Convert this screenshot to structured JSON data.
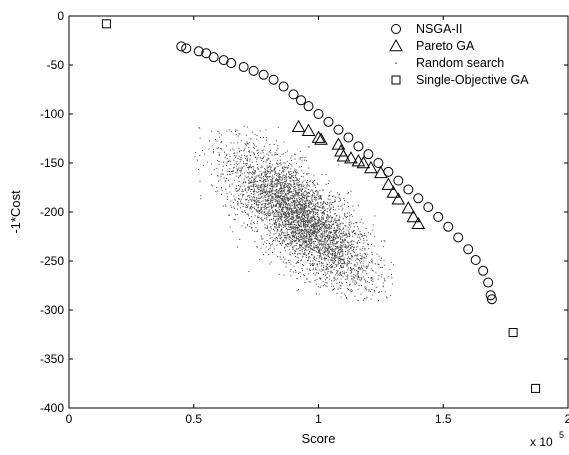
{
  "chart_data": {
    "type": "scatter",
    "xlabel": "Score",
    "ylabel": "-1*Cost",
    "x_multiplier_label": "x 10",
    "x_multiplier_exponent": "5",
    "xlim": [
      0,
      200000
    ],
    "ylim": [
      -400,
      0
    ],
    "x_ticks": [
      0,
      50000,
      100000,
      150000,
      200000
    ],
    "x_tick_labels": [
      "0",
      "0.5",
      "1",
      "1.5",
      "2"
    ],
    "y_ticks": [
      0,
      -50,
      -100,
      -150,
      -200,
      -250,
      -300,
      -350,
      -400
    ],
    "y_tick_labels": [
      "0",
      "-50",
      "-100",
      "-150",
      "-200",
      "-250",
      "-300",
      "-350",
      "-400"
    ],
    "grid": false,
    "legend_position": "top-right",
    "colors": {
      "ink": "#000000",
      "random": "#444444"
    },
    "series": [
      {
        "name": "NSGA-II",
        "marker": "circle",
        "points": [
          [
            45000,
            -31
          ],
          [
            47000,
            -33
          ],
          [
            52000,
            -36
          ],
          [
            55000,
            -38
          ],
          [
            58000,
            -42
          ],
          [
            62000,
            -45
          ],
          [
            65000,
            -48
          ],
          [
            70000,
            -52
          ],
          [
            74000,
            -56
          ],
          [
            78000,
            -60
          ],
          [
            82000,
            -65
          ],
          [
            86000,
            -72
          ],
          [
            90000,
            -80
          ],
          [
            93000,
            -86
          ],
          [
            96000,
            -92
          ],
          [
            100000,
            -100
          ],
          [
            104000,
            -108
          ],
          [
            108000,
            -116
          ],
          [
            112000,
            -124
          ],
          [
            116000,
            -133
          ],
          [
            120000,
            -141
          ],
          [
            124000,
            -150
          ],
          [
            128000,
            -159
          ],
          [
            132000,
            -168
          ],
          [
            136000,
            -177
          ],
          [
            140000,
            -186
          ],
          [
            144000,
            -195
          ],
          [
            148000,
            -205
          ],
          [
            152000,
            -215
          ],
          [
            156000,
            -226
          ],
          [
            160000,
            -238
          ],
          [
            163000,
            -249
          ],
          [
            166000,
            -260
          ],
          [
            168000,
            -272
          ],
          [
            169000,
            -285
          ],
          [
            169500,
            -289
          ]
        ]
      },
      {
        "name": "Pareto GA",
        "marker": "triangle",
        "points": [
          [
            92000,
            -113
          ],
          [
            96000,
            -117
          ],
          [
            100000,
            -124
          ],
          [
            101000,
            -126
          ],
          [
            108000,
            -131
          ],
          [
            109000,
            -138
          ],
          [
            110000,
            -143
          ],
          [
            113000,
            -145
          ],
          [
            116000,
            -148
          ],
          [
            118000,
            -150
          ],
          [
            121000,
            -155
          ],
          [
            125000,
            -160
          ],
          [
            128000,
            -172
          ],
          [
            130000,
            -180
          ],
          [
            132000,
            -187
          ],
          [
            136000,
            -196
          ],
          [
            138000,
            -205
          ],
          [
            140000,
            -212
          ]
        ]
      },
      {
        "name": "Random search",
        "marker": "dot",
        "distribution": {
          "center": [
            92000,
            -205
          ],
          "count": 4200,
          "x_range": [
            50000,
            130000
          ],
          "y_range": [
            -290,
            -110
          ]
        }
      },
      {
        "name": "Single-Objective GA",
        "marker": "square",
        "points": [
          [
            15000,
            -8
          ],
          [
            178000,
            -323
          ],
          [
            187000,
            -380
          ]
        ]
      }
    ]
  }
}
